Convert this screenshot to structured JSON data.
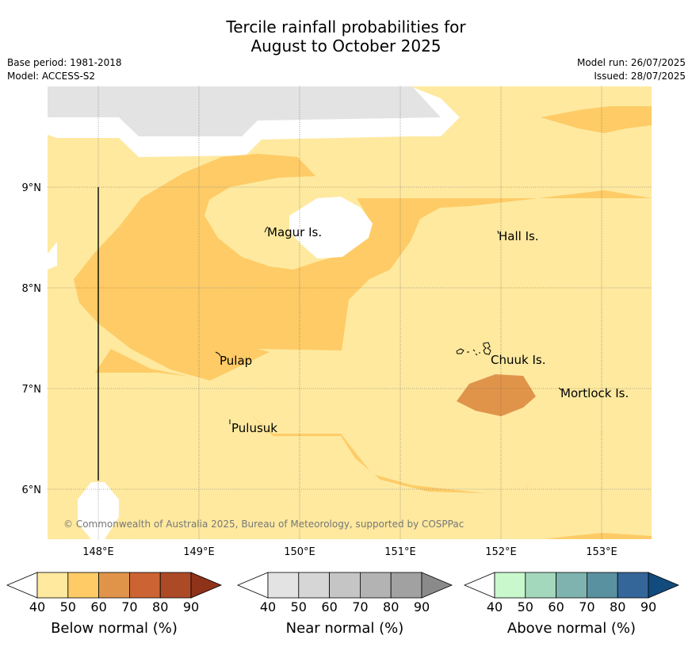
{
  "title": {
    "line1": "Tercile rainfall probabilities for",
    "line2": "August to October 2025"
  },
  "meta": {
    "base_period": "Base period: 1981-2018",
    "model": "Model: ACCESS-S2",
    "model_run": "Model run: 26/07/2025",
    "issued": "Issued: 28/07/2025"
  },
  "map": {
    "lon_ticks": [
      "148°E",
      "149°E",
      "150°E",
      "151°E",
      "152°E",
      "153°E"
    ],
    "lat_ticks": [
      "9°N",
      "8°N",
      "7°N",
      "6°N"
    ],
    "places": [
      {
        "name": "Magur Is."
      },
      {
        "name": "Hall Is."
      },
      {
        "name": "Pulap"
      },
      {
        "name": "Chuuk Is."
      },
      {
        "name": "Mortlock Is."
      },
      {
        "name": "Pulusuk"
      }
    ],
    "copyright": "© Commonwealth of Australia 2025, Bureau of Meteorology, supported by COSPPac",
    "colors": {
      "below_40_50": "#fee99f",
      "below_50_60": "#fecb66",
      "below_60_70": "#e0944a",
      "near_40_50": "#e3e3e3"
    }
  },
  "legends": [
    {
      "label": "Below normal (%)",
      "ticks": [
        "40",
        "50",
        "60",
        "70",
        "80",
        "90"
      ],
      "colors": [
        "#fee99f",
        "#fecb66",
        "#e0944a",
        "#cb6432",
        "#ad4a26",
        "#8e3219"
      ]
    },
    {
      "label": "Near normal (%)",
      "ticks": [
        "40",
        "50",
        "60",
        "70",
        "80",
        "90"
      ],
      "colors": [
        "#e3e3e3",
        "#d6d6d6",
        "#c5c5c5",
        "#b3b3b3",
        "#a1a1a1",
        "#8a8a8a"
      ]
    },
    {
      "label": "Above normal (%)",
      "ticks": [
        "40",
        "50",
        "60",
        "70",
        "80",
        "90"
      ],
      "colors": [
        "#c8f8cb",
        "#a3d8bd",
        "#7fb3af",
        "#5a91a0",
        "#346699",
        "#124b7d"
      ]
    }
  ]
}
